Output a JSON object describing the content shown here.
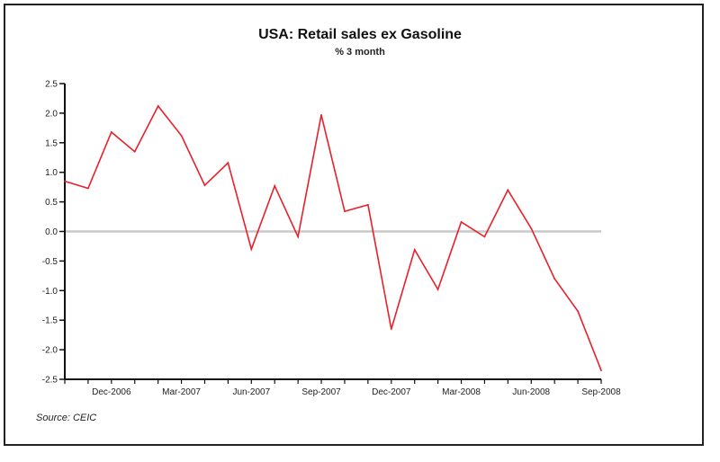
{
  "chart_data": {
    "type": "line",
    "title": "USA: Retail sales ex Gasoline",
    "subtitle": "% 3 month",
    "source": "Source: CEIC",
    "ylim": [
      -2.5,
      2.5
    ],
    "yticks": [
      "2.5",
      "2.0",
      "1.5",
      "1.0",
      "0.5",
      "0.0",
      "-0.5",
      "-1.0",
      "-1.5",
      "-2.0",
      "-2.5"
    ],
    "xtick_labels": [
      "Dec-2006",
      "Mar-2007",
      "Jun-2007",
      "Sep-2007",
      "Dec-2007",
      "Mar-2008",
      "Jun-2008",
      "Sep-2008"
    ],
    "xtick_month_index": [
      2,
      5,
      8,
      11,
      14,
      17,
      20,
      23
    ],
    "x": [
      "Oct-2006",
      "Nov-2006",
      "Dec-2006",
      "Jan-2007",
      "Feb-2007",
      "Mar-2007",
      "Apr-2007",
      "May-2007",
      "Jun-2007",
      "Jul-2007",
      "Aug-2007",
      "Sep-2007",
      "Oct-2007",
      "Nov-2007",
      "Dec-2007",
      "Jan-2008",
      "Feb-2008",
      "Mar-2008",
      "Apr-2008",
      "May-2008",
      "Jun-2008",
      "Jul-2008",
      "Aug-2008",
      "Sep-2008"
    ],
    "series": [
      {
        "values": [
          0.85,
          0.73,
          1.68,
          1.35,
          2.12,
          1.62,
          0.78,
          1.16,
          -0.3,
          0.77,
          -0.09,
          1.97,
          0.34,
          0.45,
          -1.65,
          -0.31,
          -0.98,
          0.16,
          -0.09,
          0.7,
          0.05,
          -0.8,
          -1.35,
          -2.35
        ],
        "color": "#e8202a"
      }
    ],
    "zero_line_color": "#c8c8c8",
    "grid": false
  }
}
